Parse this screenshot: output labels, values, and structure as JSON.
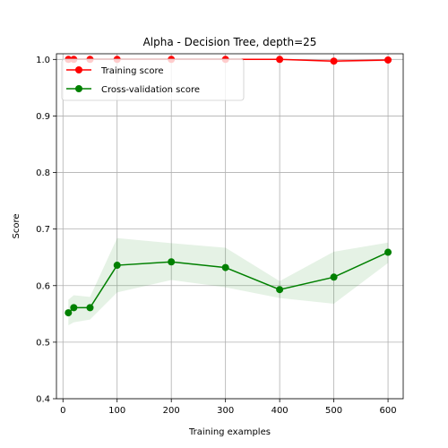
{
  "chart_data": {
    "type": "line",
    "title": "Alpha - Decision Tree, depth=25",
    "xlabel": "Training examples",
    "ylabel": "Score",
    "xlim": [
      -12,
      628
    ],
    "ylim": [
      0.4,
      1.01
    ],
    "xticks": [
      0,
      100,
      200,
      300,
      400,
      500,
      600
    ],
    "yticks": [
      0.4,
      0.5,
      0.6,
      0.7,
      0.8,
      0.9,
      1.0
    ],
    "xtick_labels": [
      "0",
      "100",
      "200",
      "300",
      "400",
      "500",
      "600"
    ],
    "ytick_labels": [
      "0.4",
      "0.5",
      "0.6",
      "0.7",
      "0.8",
      "0.9",
      "1.0"
    ],
    "grid": true,
    "legend_position": "top-left",
    "x": [
      10,
      20,
      50,
      100,
      200,
      300,
      400,
      500,
      600
    ],
    "series": [
      {
        "name": "Training score",
        "color": "#ff0000",
        "values": [
          1.0,
          1.0,
          1.0,
          1.0,
          1.0,
          1.0,
          1.0,
          0.997,
          0.999
        ],
        "lower": [
          1.0,
          1.0,
          1.0,
          1.0,
          1.0,
          1.0,
          1.0,
          0.994,
          0.997
        ],
        "upper": [
          1.0,
          1.0,
          1.0,
          1.0,
          1.0,
          1.0,
          1.0,
          1.0,
          1.0
        ]
      },
      {
        "name": "Cross-validation score",
        "color": "#008000",
        "values": [
          0.552,
          0.561,
          0.561,
          0.636,
          0.642,
          0.632,
          0.593,
          0.615,
          0.659
        ],
        "lower": [
          0.53,
          0.535,
          0.54,
          0.588,
          0.61,
          0.597,
          0.578,
          0.568,
          0.64
        ],
        "upper": [
          0.575,
          0.583,
          0.58,
          0.684,
          0.675,
          0.667,
          0.608,
          0.66,
          0.676
        ]
      }
    ]
  }
}
